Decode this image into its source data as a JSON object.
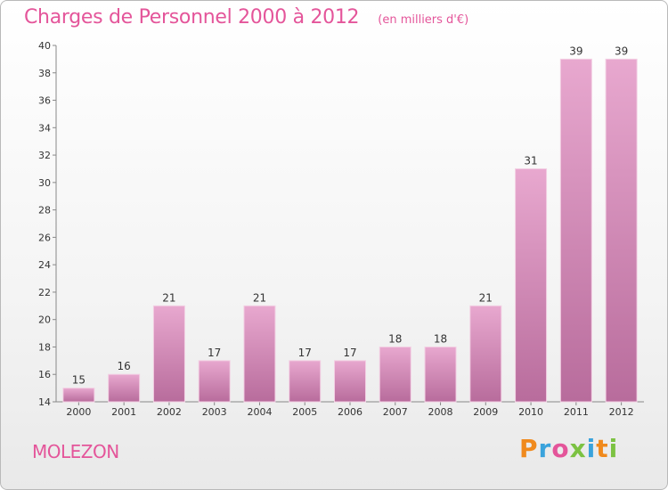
{
  "header": {
    "title": "Charges de Personnel 2000 à 2012",
    "unit": "(en milliers d'€)"
  },
  "footer": {
    "commune": "MOLEZON",
    "logo_text": "Proxiti",
    "logo_colors": [
      "#f08a1d",
      "#3aa3dc",
      "#e4559a",
      "#7cc242",
      "#3aa3dc",
      "#f08a1d",
      "#7cc242"
    ]
  },
  "chart_data": {
    "type": "bar",
    "title": "Charges de Personnel 2000 à 2012",
    "subtitle": "(en milliers d'€)",
    "xlabel": "",
    "ylabel": "",
    "categories": [
      "2000",
      "2001",
      "2002",
      "2003",
      "2004",
      "2005",
      "2006",
      "2007",
      "2008",
      "2009",
      "2010",
      "2011",
      "2012"
    ],
    "values": [
      15,
      16,
      21,
      17,
      21,
      17,
      17,
      18,
      18,
      21,
      31,
      39,
      39
    ],
    "ylim": [
      14,
      40
    ],
    "yticks": [
      14,
      16,
      18,
      20,
      22,
      24,
      26,
      28,
      30,
      32,
      34,
      36,
      38,
      40
    ],
    "grid": false,
    "legend": "none",
    "bar_color_top": "#e8a8cf",
    "bar_color_bottom": "#b86c9c"
  }
}
